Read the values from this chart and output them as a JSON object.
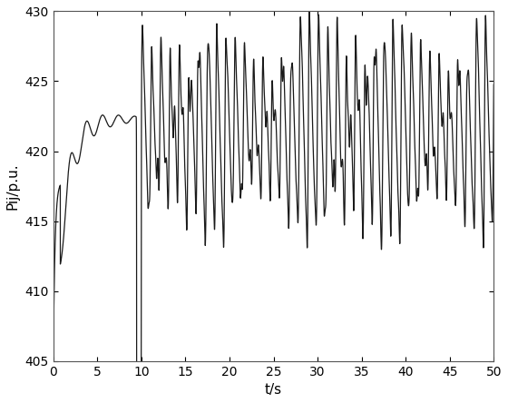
{
  "title": "",
  "xlabel": "t/s",
  "ylabel": "Pij/p.u.",
  "xlim": [
    0,
    50
  ],
  "ylim": [
    405,
    430
  ],
  "xticks": [
    0,
    5,
    10,
    15,
    20,
    25,
    30,
    35,
    40,
    45,
    50
  ],
  "yticks": [
    405,
    410,
    415,
    420,
    425,
    430
  ],
  "line_color": "#1a1a1a",
  "line_width": 0.9,
  "figsize": [
    5.6,
    4.44
  ],
  "dpi": 100,
  "background_color": "#ffffff",
  "base_value": 421.5,
  "osc_start": 10.0,
  "osc_amp_min": 7.5,
  "osc_amp_max": 9.0,
  "osc_freq": 1.0
}
